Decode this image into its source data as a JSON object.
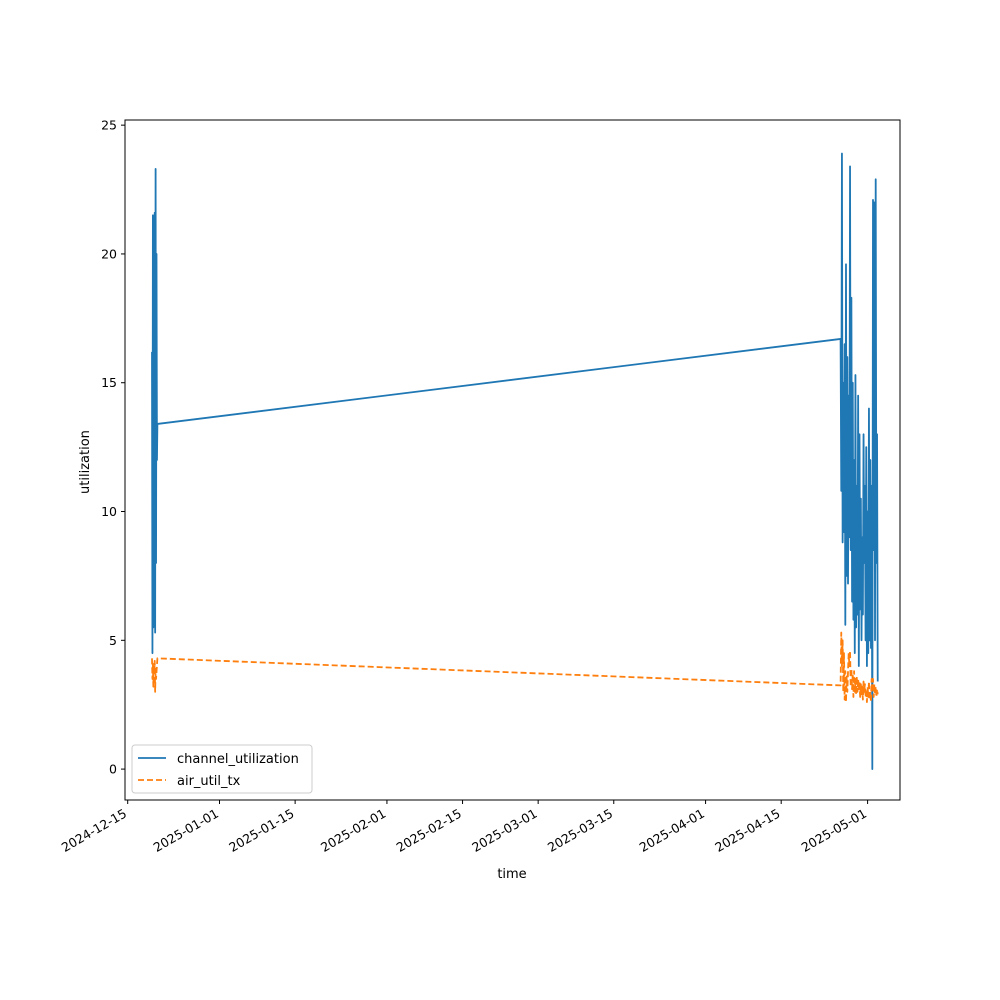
{
  "chart_data": {
    "type": "line",
    "title": "",
    "xlabel": "time",
    "ylabel": "utilization",
    "x_type": "date",
    "xlim": [
      "2024-12-14T12:00",
      "2025-05-07T00:00"
    ],
    "ylim": [
      -1.2,
      25.2
    ],
    "x_ticks": [
      "2024-12-15",
      "2025-01-01",
      "2025-01-15",
      "2025-02-01",
      "2025-02-15",
      "2025-03-01",
      "2025-03-15",
      "2025-04-01",
      "2025-04-15",
      "2025-05-01"
    ],
    "y_ticks": [
      0,
      5,
      10,
      15,
      20,
      25
    ],
    "grid": false,
    "legend_position": "lower-left",
    "series": [
      {
        "name": "channel_utilization",
        "color": "#1f77b4",
        "style": "solid",
        "points": [
          [
            "2024-12-19T12:00",
            16.2
          ],
          [
            "2024-12-19T14:00",
            4.5
          ],
          [
            "2024-12-19T16:00",
            21.5
          ],
          [
            "2024-12-19T18:00",
            5.5
          ],
          [
            "2024-12-19T20:00",
            19.0
          ],
          [
            "2024-12-19T22:00",
            6.0
          ],
          [
            "2024-12-20T00:00",
            21.6
          ],
          [
            "2024-12-20T02:00",
            5.3
          ],
          [
            "2024-12-20T04:00",
            23.3
          ],
          [
            "2024-12-20T06:00",
            8.0
          ],
          [
            "2024-12-20T08:00",
            20.0
          ],
          [
            "2024-12-20T10:00",
            12.0
          ],
          [
            "2024-12-20T12:00",
            13.4
          ],
          [
            "2025-04-26T00:00",
            16.7
          ],
          [
            "2025-04-26T03:00",
            10.8
          ],
          [
            "2025-04-26T06:00",
            23.9
          ],
          [
            "2025-04-26T09:00",
            8.8
          ],
          [
            "2025-04-26T12:00",
            15.0
          ],
          [
            "2025-04-26T15:00",
            9.2
          ],
          [
            "2025-04-26T18:00",
            16.5
          ],
          [
            "2025-04-26T21:00",
            5.6
          ],
          [
            "2025-04-27T00:00",
            19.6
          ],
          [
            "2025-04-27T03:00",
            7.5
          ],
          [
            "2025-04-27T06:00",
            16.0
          ],
          [
            "2025-04-27T09:00",
            7.2
          ],
          [
            "2025-04-27T12:00",
            14.5
          ],
          [
            "2025-04-27T15:00",
            9.0
          ],
          [
            "2025-04-27T18:00",
            23.4
          ],
          [
            "2025-04-27T21:00",
            8.5
          ],
          [
            "2025-04-28T00:00",
            18.3
          ],
          [
            "2025-04-28T03:00",
            6.5
          ],
          [
            "2025-04-28T06:00",
            15.0
          ],
          [
            "2025-04-28T09:00",
            5.8
          ],
          [
            "2025-04-28T12:00",
            12.0
          ],
          [
            "2025-04-28T15:00",
            4.5
          ],
          [
            "2025-04-28T18:00",
            15.3
          ],
          [
            "2025-04-28T21:00",
            5.5
          ],
          [
            "2025-04-29T00:00",
            11.0
          ],
          [
            "2025-04-29T03:00",
            6.0
          ],
          [
            "2025-04-29T06:00",
            14.5
          ],
          [
            "2025-04-29T09:00",
            4.0
          ],
          [
            "2025-04-29T12:00",
            13.0
          ],
          [
            "2025-04-29T15:00",
            6.2
          ],
          [
            "2025-04-29T18:00",
            10.5
          ],
          [
            "2025-04-29T21:00",
            5.0
          ],
          [
            "2025-04-30T00:00",
            9.0
          ],
          [
            "2025-04-30T03:00",
            6.0
          ],
          [
            "2025-04-30T06:00",
            13.0
          ],
          [
            "2025-04-30T09:00",
            8.0
          ],
          [
            "2025-04-30T12:00",
            11.0
          ],
          [
            "2025-04-30T15:00",
            5.0
          ],
          [
            "2025-04-30T18:00",
            12.5
          ],
          [
            "2025-04-30T21:00",
            4.0
          ],
          [
            "2025-05-01T00:00",
            10.0
          ],
          [
            "2025-05-01T03:00",
            4.5
          ],
          [
            "2025-05-01T06:00",
            14.0
          ],
          [
            "2025-05-01T09:00",
            5.0
          ],
          [
            "2025-05-01T12:00",
            12.0
          ],
          [
            "2025-05-01T15:00",
            4.7
          ],
          [
            "2025-05-01T18:00",
            11.0
          ],
          [
            "2025-05-01T21:00",
            0.0
          ],
          [
            "2025-05-02T00:00",
            22.1
          ],
          [
            "2025-05-02T03:00",
            8.5
          ],
          [
            "2025-05-02T06:00",
            22.0
          ],
          [
            "2025-05-02T09:00",
            5.0
          ],
          [
            "2025-05-02T12:00",
            22.9
          ],
          [
            "2025-05-02T15:00",
            8.0
          ],
          [
            "2025-05-02T18:00",
            13.0
          ],
          [
            "2025-05-02T21:00",
            3.4
          ]
        ]
      },
      {
        "name": "air_util_tx",
        "color": "#ff7f0e",
        "style": "dashed",
        "points": [
          [
            "2024-12-19T12:00",
            4.3
          ],
          [
            "2024-12-19T14:00",
            3.5
          ],
          [
            "2024-12-19T16:00",
            4.1
          ],
          [
            "2024-12-19T18:00",
            3.2
          ],
          [
            "2024-12-19T20:00",
            4.0
          ],
          [
            "2024-12-19T22:00",
            3.7
          ],
          [
            "2024-12-20T00:00",
            4.2
          ],
          [
            "2024-12-20T02:00",
            3.0
          ],
          [
            "2024-12-20T04:00",
            3.9
          ],
          [
            "2024-12-20T06:00",
            3.5
          ],
          [
            "2024-12-20T12:00",
            4.3
          ],
          [
            "2025-04-26T00:00",
            3.25
          ],
          [
            "2025-04-26T03:00",
            5.3
          ],
          [
            "2025-04-26T06:00",
            4.0
          ],
          [
            "2025-04-26T09:00",
            5.0
          ],
          [
            "2025-04-26T12:00",
            3.0
          ],
          [
            "2025-04-26T15:00",
            4.5
          ],
          [
            "2025-04-26T18:00",
            2.7
          ],
          [
            "2025-04-26T21:00",
            3.8
          ],
          [
            "2025-04-27T00:00",
            2.6
          ],
          [
            "2025-04-27T03:00",
            3.6
          ],
          [
            "2025-04-27T06:00",
            3.0
          ],
          [
            "2025-04-27T09:00",
            3.8
          ],
          [
            "2025-04-27T12:00",
            4.5
          ],
          [
            "2025-04-27T15:00",
            4.0
          ],
          [
            "2025-04-27T18:00",
            4.6
          ],
          [
            "2025-04-27T21:00",
            3.2
          ],
          [
            "2025-04-28T00:00",
            3.9
          ],
          [
            "2025-04-28T03:00",
            3.1
          ],
          [
            "2025-04-28T06:00",
            3.7
          ],
          [
            "2025-04-28T09:00",
            2.8
          ],
          [
            "2025-04-28T12:00",
            3.8
          ],
          [
            "2025-04-28T15:00",
            3.0
          ],
          [
            "2025-04-28T18:00",
            3.5
          ],
          [
            "2025-04-28T21:00",
            2.9
          ],
          [
            "2025-04-29T00:00",
            3.6
          ],
          [
            "2025-04-29T03:00",
            3.0
          ],
          [
            "2025-04-29T06:00",
            3.5
          ],
          [
            "2025-04-29T09:00",
            3.1
          ],
          [
            "2025-04-29T12:00",
            3.4
          ],
          [
            "2025-04-29T15:00",
            2.8
          ],
          [
            "2025-04-29T18:00",
            3.3
          ],
          [
            "2025-04-29T21:00",
            2.9
          ],
          [
            "2025-04-30T00:00",
            3.2
          ],
          [
            "2025-04-30T03:00",
            2.7
          ],
          [
            "2025-04-30T06:00",
            3.4
          ],
          [
            "2025-04-30T09:00",
            3.0
          ],
          [
            "2025-04-30T12:00",
            3.3
          ],
          [
            "2025-04-30T15:00",
            2.8
          ],
          [
            "2025-04-30T18:00",
            3.1
          ],
          [
            "2025-04-30T21:00",
            2.6
          ],
          [
            "2025-05-01T00:00",
            3.2
          ],
          [
            "2025-05-01T03:00",
            2.8
          ],
          [
            "2025-05-01T06:00",
            3.4
          ],
          [
            "2025-05-01T09:00",
            2.7
          ],
          [
            "2025-05-01T12:00",
            3.0
          ],
          [
            "2025-05-01T15:00",
            2.6
          ],
          [
            "2025-05-01T18:00",
            3.5
          ],
          [
            "2025-05-01T21:00",
            3.0
          ],
          [
            "2025-05-02T00:00",
            3.5
          ],
          [
            "2025-05-02T03:00",
            2.8
          ],
          [
            "2025-05-02T06:00",
            3.3
          ],
          [
            "2025-05-02T09:00",
            2.9
          ],
          [
            "2025-05-02T12:00",
            3.2
          ],
          [
            "2025-05-02T15:00",
            2.8
          ],
          [
            "2025-05-02T18:00",
            3.1
          ],
          [
            "2025-05-02T21:00",
            2.9
          ]
        ]
      }
    ]
  }
}
